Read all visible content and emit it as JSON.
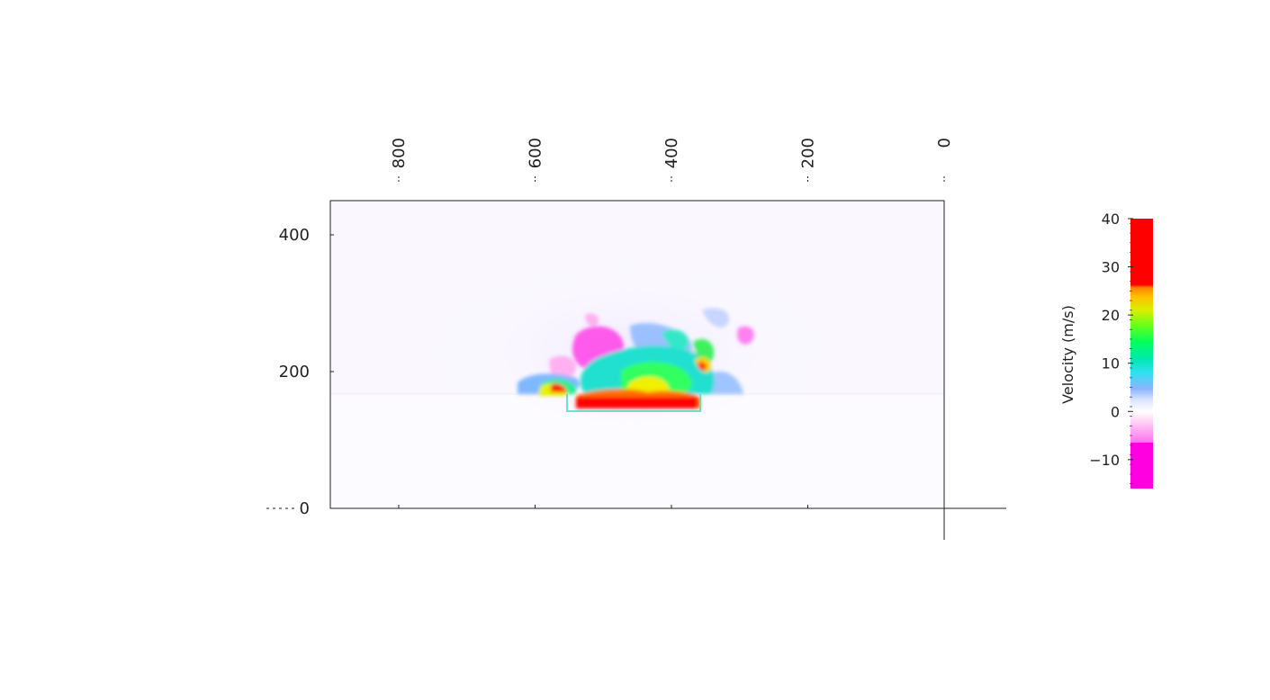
{
  "chart_data": {
    "type": "heatmap",
    "title": "",
    "xlabel": "",
    "ylabel": "",
    "x_axis": {
      "ticks": [
        800,
        600,
        400,
        200,
        0
      ],
      "tick_labels": [
        "800",
        "600",
        "400",
        "200",
        "0"
      ],
      "range": [
        900,
        0
      ],
      "reversed": true,
      "position": "top",
      "label_rotation": "vertical"
    },
    "y_axis": {
      "ticks": [
        400,
        200,
        0
      ],
      "tick_labels": [
        "400",
        "200",
        "0"
      ],
      "range": [
        0,
        450
      ]
    },
    "colorbar": {
      "label": "Velocity (m/s)",
      "range": [
        -16,
        40
      ],
      "ticks": [
        40,
        30,
        20,
        10,
        0,
        -10
      ],
      "tick_labels": [
        "40",
        "30",
        "20",
        "10",
        "0",
        "−10"
      ],
      "colors": {
        "high": "#ff0000",
        "upper": "#ff8000",
        "mid_high": "#f0f000",
        "mid": "#20ff40",
        "low_mid": "#00e8c0",
        "near_zero_pos": "#8ab4ff",
        "zero": "#ffffff",
        "near_zero_neg": "#ffb0f0",
        "low": "#ff00e0"
      }
    },
    "features": {
      "interface_height": 168,
      "source_region": {
        "x_from": 550,
        "x_to": 370,
        "y_from": 142,
        "y_to": 168
      },
      "plume_region": {
        "x_from": 650,
        "x_to": 270,
        "y_from": 168,
        "y_to": 280
      },
      "source_velocity_ms": 40,
      "background_velocity_ms": 0
    },
    "grid": false,
    "legend": "colorbar right"
  }
}
